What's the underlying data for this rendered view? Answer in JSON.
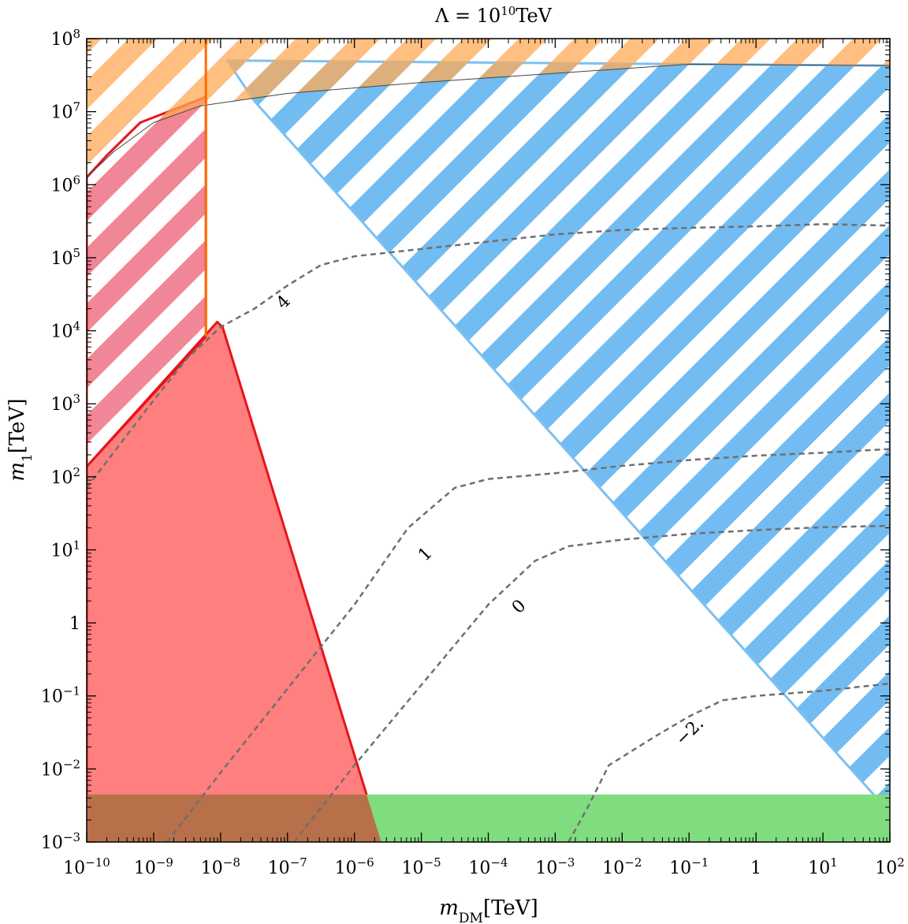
{
  "chart_data": {
    "type": "region-contour",
    "title": {
      "lhs": "Λ = 10",
      "exp": "10",
      "rhs": "TeV"
    },
    "xlabel": {
      "main": "m",
      "sub": "DM",
      "unit": "[TeV]"
    },
    "ylabel": {
      "main": "m",
      "sub": "1",
      "unit": "[TeV]"
    },
    "x_scale": "log",
    "y_scale": "log",
    "xlim_log10": [
      -10,
      2
    ],
    "ylim_log10": [
      -3,
      8
    ],
    "x_ticks": [
      {
        "log10": -10,
        "base": "10",
        "exp": "−10"
      },
      {
        "log10": -9,
        "base": "10",
        "exp": "−9"
      },
      {
        "log10": -8,
        "base": "10",
        "exp": "−8"
      },
      {
        "log10": -7,
        "base": "10",
        "exp": "−7"
      },
      {
        "log10": -6,
        "base": "10",
        "exp": "−6"
      },
      {
        "log10": -5,
        "base": "10",
        "exp": "−5"
      },
      {
        "log10": -4,
        "base": "10",
        "exp": "−4"
      },
      {
        "log10": -3,
        "base": "10",
        "exp": "−3"
      },
      {
        "log10": -2,
        "base": "10",
        "exp": "−2"
      },
      {
        "log10": -1,
        "base": "10",
        "exp": "−1"
      },
      {
        "log10": 0,
        "base": "1",
        "exp": ""
      },
      {
        "log10": 1,
        "base": "10",
        "exp": "1"
      },
      {
        "log10": 2,
        "base": "10",
        "exp": "2"
      }
    ],
    "y_ticks": [
      {
        "log10": -3,
        "base": "10",
        "exp": "−3"
      },
      {
        "log10": -2,
        "base": "10",
        "exp": "−2"
      },
      {
        "log10": -1,
        "base": "10",
        "exp": "−1"
      },
      {
        "log10": 0,
        "base": "1",
        "exp": ""
      },
      {
        "log10": 1,
        "base": "10",
        "exp": "1"
      },
      {
        "log10": 2,
        "base": "10",
        "exp": "2"
      },
      {
        "log10": 3,
        "base": "10",
        "exp": "3"
      },
      {
        "log10": 4,
        "base": "10",
        "exp": "4"
      },
      {
        "log10": 5,
        "base": "10",
        "exp": "5"
      },
      {
        "log10": 6,
        "base": "10",
        "exp": "6"
      },
      {
        "log10": 7,
        "base": "10",
        "exp": "7"
      },
      {
        "log10": 8,
        "base": "10",
        "exp": "8"
      }
    ],
    "regions": [
      {
        "id": "red-solid",
        "color": "#ff7f7f",
        "edge": "#e8141a",
        "style": "solid",
        "points_log10": [
          [
            -10,
            2.14
          ],
          [
            -8.05,
            4.12
          ],
          [
            -7.97,
            4.05
          ],
          [
            -5.6,
            -3
          ],
          [
            -10,
            -3
          ]
        ]
      },
      {
        "id": "red-hatched",
        "color": "#f08090",
        "edge": "#e8141a",
        "style": "hatched",
        "points_log10": [
          [
            -10,
            6.1
          ],
          [
            -9.7,
            6.4
          ],
          [
            -9.2,
            6.85
          ],
          [
            -8.22,
            7.2
          ],
          [
            -8.22,
            3.92
          ],
          [
            -10,
            2.14
          ]
        ]
      },
      {
        "id": "blue-hatched",
        "color": "#6ab8f0",
        "edge": "#7cc0f2",
        "style": "hatched",
        "points_log10": [
          [
            -7.9,
            7.7
          ],
          [
            -7.5,
            7.15
          ],
          [
            2,
            -2.6
          ],
          [
            2,
            7.63
          ]
        ]
      },
      {
        "id": "orange-hatched",
        "color": "#ffaa55",
        "edge": "#444444",
        "style": "hatched",
        "points_log10": [
          [
            -10,
            8
          ],
          [
            2,
            8
          ],
          [
            2,
            7.63
          ],
          [
            -1,
            7.65
          ],
          [
            -5,
            7.4
          ],
          [
            -7,
            7.25
          ],
          [
            -8.3,
            7.08
          ],
          [
            -9.0,
            6.85
          ],
          [
            -9.6,
            6.45
          ],
          [
            -10,
            6.1
          ]
        ]
      },
      {
        "id": "green-solid",
        "color": "#7fdc7f",
        "edge": "none",
        "style": "solid",
        "points_log10": [
          [
            -10,
            -3
          ],
          [
            2,
            -3
          ],
          [
            2,
            -2.35
          ],
          [
            -10,
            -2.35
          ]
        ]
      }
    ],
    "vertical_line": {
      "x_log10": -8.22,
      "y_log10": [
        3.92,
        8
      ],
      "color": "#ff6a00"
    },
    "contours": [
      {
        "label": "4",
        "label_pos_log10": [
          -7.07,
          4.4
        ],
        "points_log10": [
          [
            -10,
            1.85
          ],
          [
            -9.5,
            2.45
          ],
          [
            -9,
            3.05
          ],
          [
            -8.5,
            3.62
          ],
          [
            -8,
            4.05
          ],
          [
            -7.5,
            4.3
          ],
          [
            -7,
            4.62
          ],
          [
            -6.5,
            4.9
          ],
          [
            -6,
            5.02
          ],
          [
            -5,
            5.12
          ],
          [
            -4,
            5.22
          ],
          [
            -3,
            5.32
          ],
          [
            -2,
            5.38
          ],
          [
            -1,
            5.41
          ],
          [
            0,
            5.43
          ],
          [
            1,
            5.46
          ],
          [
            2,
            5.44
          ]
        ]
      },
      {
        "label": "1",
        "label_pos_log10": [
          -4.95,
          0.95
        ],
        "points_log10": [
          [
            -8.8,
            -3
          ],
          [
            -8,
            -2.05
          ],
          [
            -7,
            -0.9
          ],
          [
            -6,
            0.25
          ],
          [
            -5.2,
            1.3
          ],
          [
            -4.5,
            1.85
          ],
          [
            -4,
            1.97
          ],
          [
            -3,
            2.05
          ],
          [
            -2,
            2.15
          ],
          [
            -1,
            2.23
          ],
          [
            0,
            2.29
          ],
          [
            1,
            2.33
          ],
          [
            2,
            2.38
          ]
        ]
      },
      {
        "label": "0",
        "label_pos_log10": [
          -3.55,
          0.23
        ],
        "points_log10": [
          [
            -6.9,
            -3
          ],
          [
            -6,
            -1.95
          ],
          [
            -5,
            -0.85
          ],
          [
            -4,
            0.25
          ],
          [
            -3.3,
            0.85
          ],
          [
            -2.8,
            1.05
          ],
          [
            -2,
            1.14
          ],
          [
            -1,
            1.22
          ],
          [
            0,
            1.27
          ],
          [
            1,
            1.31
          ],
          [
            2,
            1.33
          ]
        ]
      },
      {
        "label": "−2.",
        "label_pos_log10": [
          -1.0,
          -1.48
        ],
        "points_log10": [
          [
            -2.8,
            -3
          ],
          [
            -2.5,
            -2.5
          ],
          [
            -2.2,
            -1.95
          ],
          [
            -1.5,
            -1.55
          ],
          [
            -1.0,
            -1.28
          ],
          [
            -0.5,
            -1.06
          ],
          [
            0,
            -1.0
          ],
          [
            1,
            -0.93
          ],
          [
            2,
            -0.83
          ]
        ]
      }
    ]
  }
}
